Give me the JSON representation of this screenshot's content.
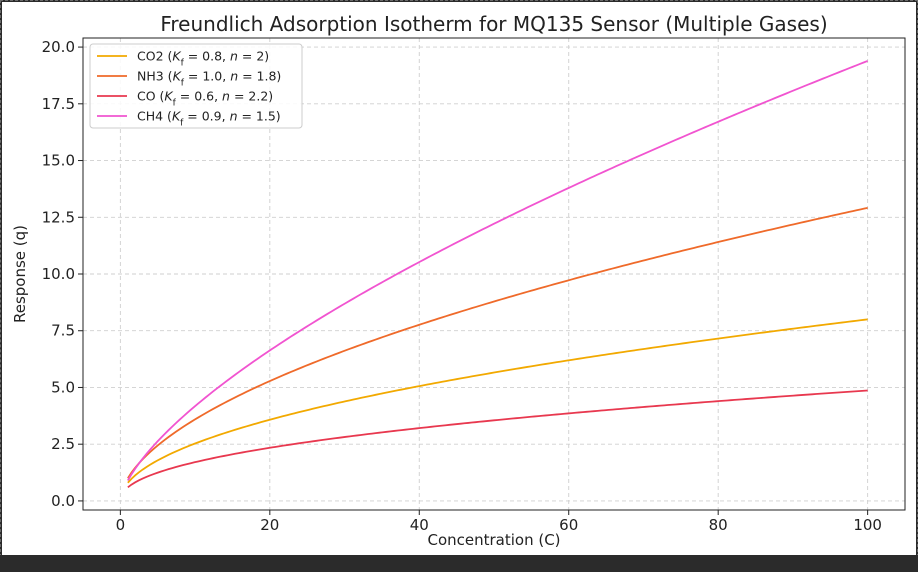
{
  "chart_data": {
    "type": "line",
    "title": "Freundlich Adsorption Isotherm for MQ135 Sensor (Multiple Gases)",
    "xlabel": "Concentration (C)",
    "ylabel": "Response (q)",
    "xlim": [
      -5,
      105
    ],
    "ylim": [
      -0.4,
      20.4
    ],
    "x_ticks": [
      "0",
      "20",
      "40",
      "60",
      "80",
      "100"
    ],
    "y_ticks": [
      "0.0",
      "2.5",
      "5.0",
      "7.5",
      "10.0",
      "12.5",
      "15.0",
      "17.5",
      "20.0"
    ],
    "x_range": [
      1,
      100
    ],
    "grid": true,
    "legend_position": "top-left",
    "series": [
      {
        "name": "CO2",
        "legend_label": "CO2 (K_f = 0.8, n = 2)",
        "Kf": 0.8,
        "n": 2,
        "color": "#f2a900",
        "x": [
          1,
          5,
          10,
          20,
          30,
          40,
          50,
          60,
          70,
          80,
          90,
          100
        ],
        "y": [
          0.8,
          1.79,
          2.53,
          3.58,
          4.38,
          5.06,
          5.66,
          6.2,
          6.69,
          7.16,
          7.59,
          8.0
        ]
      },
      {
        "name": "NH3",
        "legend_label": "NH3 (K_f = 1.0, n = 1.8)",
        "Kf": 1.0,
        "n": 1.8,
        "color": "#ef6a2a",
        "x": [
          1,
          5,
          10,
          20,
          30,
          40,
          50,
          60,
          70,
          80,
          90,
          100
        ],
        "y": [
          1.0,
          2.45,
          3.59,
          5.28,
          6.62,
          7.77,
          8.79,
          9.73,
          10.6,
          11.42,
          12.19,
          12.92
        ]
      },
      {
        "name": "CO",
        "legend_label": "CO (K_f = 0.6, n = 2.2)",
        "Kf": 0.6,
        "n": 2.2,
        "color": "#e8384f",
        "x": [
          1,
          5,
          10,
          20,
          30,
          40,
          50,
          60,
          70,
          80,
          90,
          100
        ],
        "y": [
          0.6,
          1.24,
          1.71,
          2.34,
          2.8,
          3.2,
          3.54,
          3.84,
          4.12,
          4.37,
          4.61,
          4.84
        ]
      },
      {
        "name": "CH4",
        "legend_label": "CH4 (K_f = 0.9, n = 1.5)",
        "Kf": 0.9,
        "n": 1.5,
        "color": "#f154d0",
        "x": [
          1,
          5,
          10,
          20,
          30,
          40,
          50,
          60,
          70,
          80,
          90,
          100
        ],
        "y": [
          0.9,
          2.63,
          4.18,
          6.63,
          8.69,
          10.53,
          12.22,
          13.8,
          15.29,
          16.71,
          18.07,
          19.39
        ]
      }
    ]
  }
}
